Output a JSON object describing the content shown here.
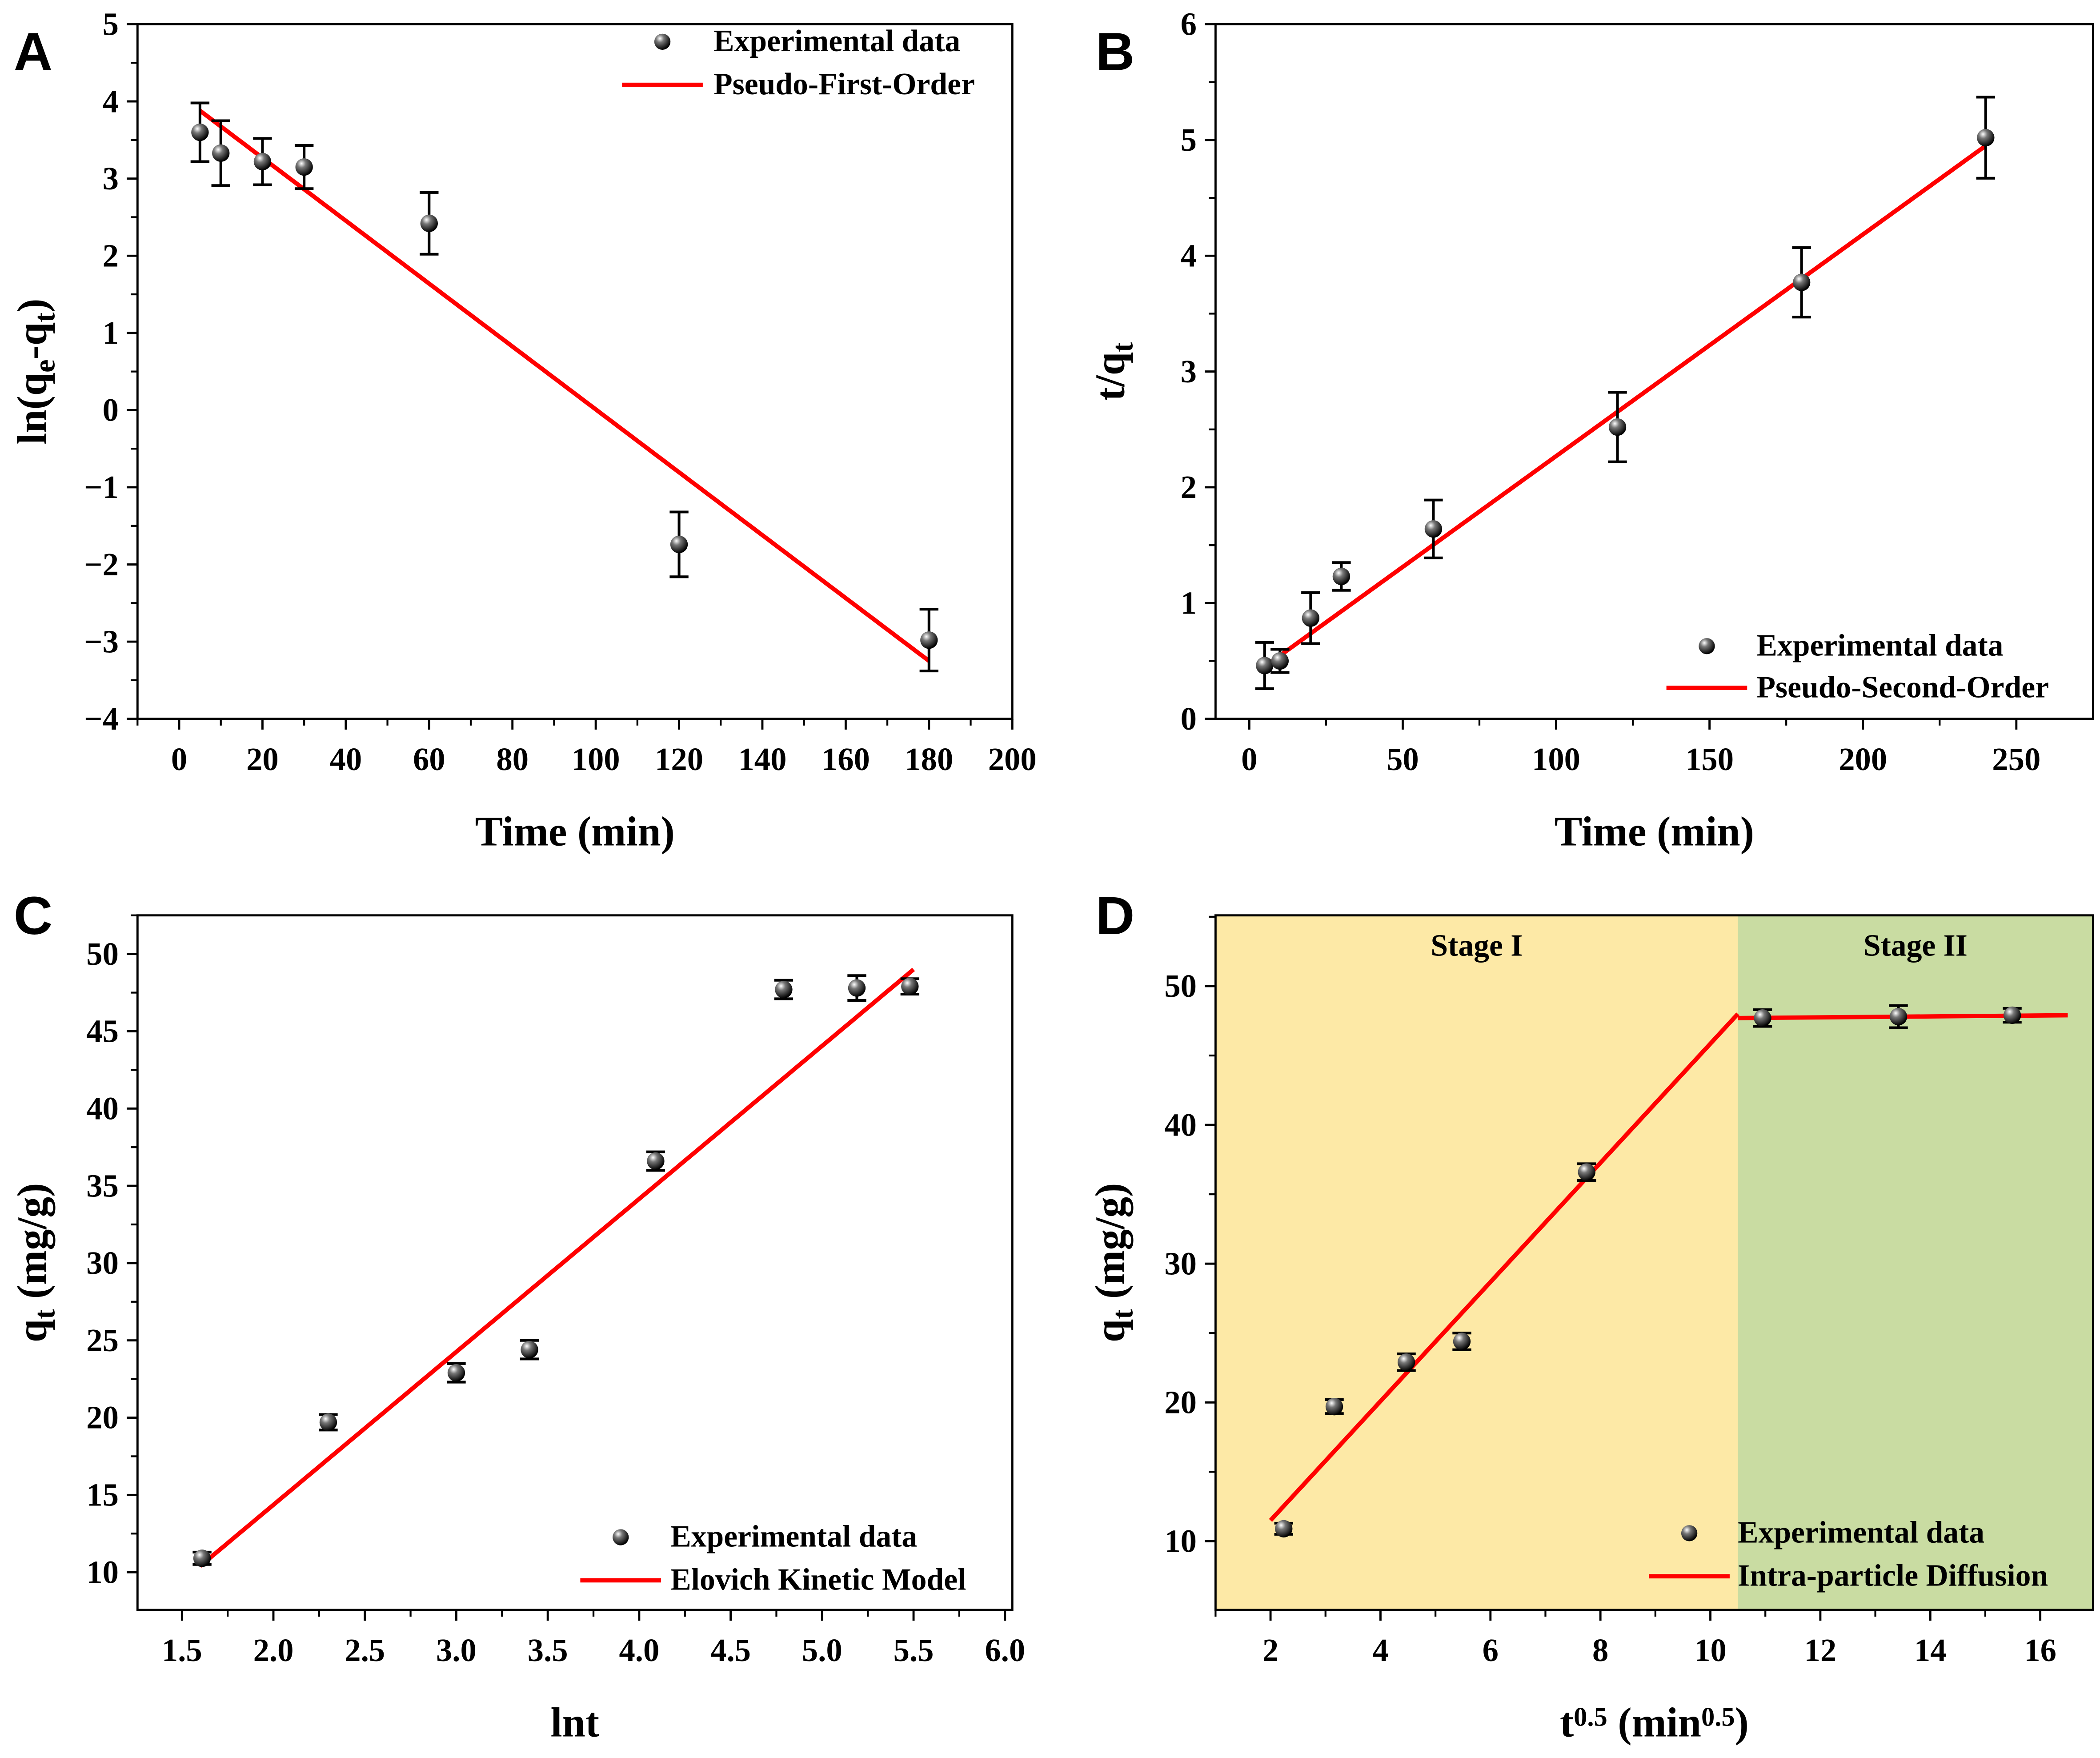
{
  "colors": {
    "fit": "#ff0000",
    "marker": "#000000",
    "stage1": "#fde9a6",
    "stage2": "#c9dca2"
  },
  "chart_data": [
    {
      "panel": "A",
      "type": "scatter",
      "xlabel": [
        [
          "Time (min)",
          ""
        ]
      ],
      "ylabel": [
        [
          "ln(q",
          ""
        ],
        [
          "e",
          "sub"
        ],
        [
          "-q",
          ""
        ],
        [
          "t",
          "sub"
        ],
        [
          ")",
          ""
        ]
      ],
      "xlim": [
        -10,
        200
      ],
      "ylim": [
        -4,
        5
      ],
      "xticks": [
        0,
        20,
        40,
        60,
        80,
        100,
        120,
        140,
        160,
        180,
        200
      ],
      "yticks": [
        -4,
        -3,
        -2,
        -1,
        0,
        1,
        2,
        3,
        4,
        5
      ],
      "yticklabels": [
        "−4",
        "−3",
        "−2",
        "−1",
        "0",
        "1",
        "2",
        "3",
        "4",
        "5"
      ],
      "points": [
        [
          5,
          3.6,
          0.38
        ],
        [
          10,
          3.33,
          0.42
        ],
        [
          20,
          3.22,
          0.3
        ],
        [
          30,
          3.15,
          0.28
        ],
        [
          60,
          2.42,
          0.4
        ],
        [
          120,
          -1.74,
          0.42
        ],
        [
          180,
          -2.98,
          0.4
        ]
      ],
      "fits": [
        [
          [
            5,
            3.88
          ],
          [
            180,
            -3.25
          ]
        ]
      ],
      "legend": [
        "Experimental data",
        "Pseudo-First-Order"
      ],
      "legend_position": "top-right"
    },
    {
      "panel": "B",
      "type": "scatter",
      "xlabel": [
        [
          "Time (min)",
          ""
        ]
      ],
      "ylabel": [
        [
          "t/q",
          ""
        ],
        [
          "t",
          "sub"
        ]
      ],
      "xlim": [
        -11,
        275
      ],
      "ylim": [
        0,
        6
      ],
      "xticks": [
        0,
        50,
        100,
        150,
        200,
        250
      ],
      "yticks": [
        0,
        1,
        2,
        3,
        4,
        5,
        6
      ],
      "points": [
        [
          5,
          0.46,
          0.2
        ],
        [
          10,
          0.5,
          0.1
        ],
        [
          20,
          0.87,
          0.22
        ],
        [
          30,
          1.23,
          0.12
        ],
        [
          60,
          1.64,
          0.25
        ],
        [
          120,
          2.52,
          0.3
        ],
        [
          180,
          3.77,
          0.3
        ],
        [
          240,
          5.02,
          0.35
        ]
      ],
      "fits": [
        [
          [
            5,
            0.45
          ],
          [
            240,
            4.95
          ]
        ]
      ],
      "legend": [
        "Experimental data",
        "Pseudo-Second-Order"
      ],
      "legend_position": "bottom-right"
    },
    {
      "panel": "C",
      "type": "scatter",
      "xlabel": [
        [
          "lnt",
          ""
        ]
      ],
      "ylabel": [
        [
          "q",
          ""
        ],
        [
          "t",
          "sub"
        ],
        [
          " (mg/g)",
          ""
        ]
      ],
      "xlim": [
        1.257,
        6.04
      ],
      "ylim": [
        7.56,
        52.5
      ],
      "xticks": [
        1.5,
        2.0,
        2.5,
        3.0,
        3.5,
        4.0,
        4.5,
        5.0,
        5.5,
        6.0
      ],
      "xticklabels": [
        "1.5",
        "2.0",
        "2.5",
        "3.0",
        "3.5",
        "4.0",
        "4.5",
        "5.0",
        "5.5",
        "6.0"
      ],
      "yticks": [
        10,
        15,
        20,
        25,
        30,
        35,
        40,
        45,
        50
      ],
      "points": [
        [
          1.61,
          10.9,
          0.4
        ],
        [
          2.3,
          19.7,
          0.5
        ],
        [
          3.0,
          22.9,
          0.6
        ],
        [
          3.4,
          24.4,
          0.6
        ],
        [
          4.09,
          36.6,
          0.6
        ],
        [
          4.79,
          47.7,
          0.6
        ],
        [
          5.19,
          47.8,
          0.8
        ],
        [
          5.48,
          47.9,
          0.5
        ]
      ],
      "fits": [
        [
          [
            1.6,
            10.4
          ],
          [
            5.5,
            49.0
          ]
        ]
      ],
      "legend": [
        "Experimental data",
        "Elovich Kinetic Model"
      ],
      "legend_position": "bottom-right"
    },
    {
      "panel": "D",
      "type": "scatter",
      "xlabel": [
        [
          "t",
          ""
        ],
        [
          "0.5",
          "sup"
        ],
        [
          " (min",
          ""
        ],
        [
          "0.5",
          "sup"
        ],
        [
          ")",
          ""
        ]
      ],
      "ylabel": [
        [
          "q",
          ""
        ],
        [
          "t",
          "sub"
        ],
        [
          " (mg/g)",
          ""
        ]
      ],
      "xlim": [
        1.0,
        16.96
      ],
      "ylim": [
        5.05,
        55.1
      ],
      "xticks": [
        2,
        4,
        6,
        8,
        10,
        12,
        14,
        16
      ],
      "yticks": [
        10,
        20,
        30,
        40,
        50
      ],
      "regions": [
        {
          "label": "Stage I",
          "from": 1.0,
          "to": 10.5,
          "color": "#fde9a6"
        },
        {
          "label": "Stage II",
          "from": 10.5,
          "to": 16.96,
          "color": "#c9dca2"
        }
      ],
      "points": [
        [
          2.24,
          10.9,
          0.4
        ],
        [
          3.16,
          19.7,
          0.5
        ],
        [
          4.47,
          22.9,
          0.6
        ],
        [
          5.48,
          24.4,
          0.6
        ],
        [
          7.75,
          36.6,
          0.6
        ],
        [
          10.95,
          47.7,
          0.6
        ],
        [
          13.42,
          47.8,
          0.8
        ],
        [
          15.49,
          47.9,
          0.5
        ]
      ],
      "fits": [
        [
          [
            2.0,
            11.5
          ],
          [
            10.5,
            48.0
          ]
        ],
        [
          [
            10.5,
            47.7
          ],
          [
            16.5,
            47.9
          ]
        ]
      ],
      "legend": [
        "Experimental data",
        "Intra-particle Diffusion"
      ],
      "legend_position": "bottom-right"
    }
  ]
}
